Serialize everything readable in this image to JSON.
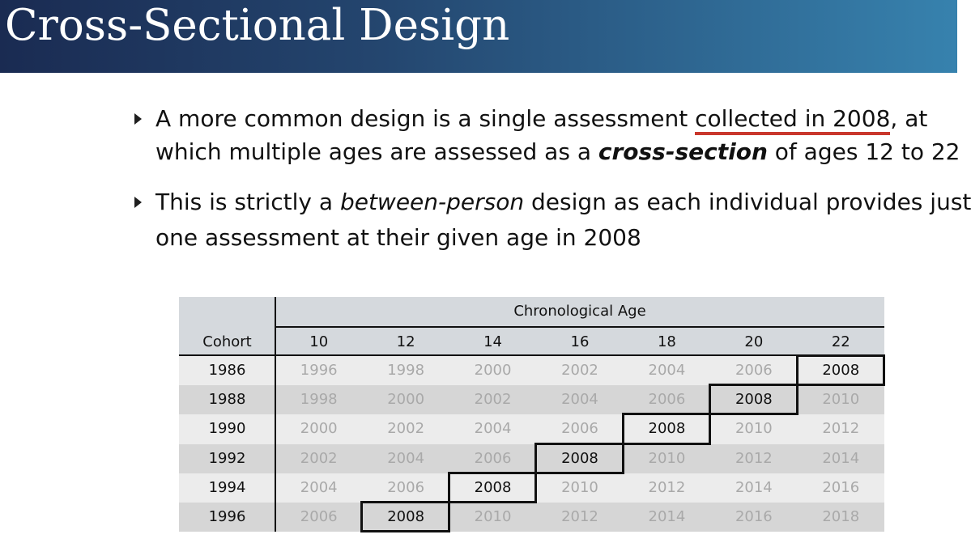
{
  "slide": {
    "title": "Cross-Sectional Design"
  },
  "bullets": [
    {
      "line1_pre": "A more common design is a single assessment ",
      "line1_underlined": "collected in 2008",
      "line1_post": ", at",
      "line2_pre": "which multiple ages are assessed as a ",
      "line2_emph": "cross-section",
      "line2_post": " of ages 12 to 22"
    },
    {
      "line1_pre": "This is strictly a ",
      "line1_emph": "between-person",
      "line1_post": " design as each individual provides just",
      "line2": "one assessment at their given age in 2008"
    }
  ],
  "table": {
    "super_header": "Chronological Age",
    "cohort_header": "Cohort",
    "ages": [
      "10",
      "12",
      "14",
      "16",
      "18",
      "20",
      "22"
    ],
    "rows": [
      {
        "cohort": "1986",
        "cells": [
          "1996",
          "1998",
          "2000",
          "2002",
          "2004",
          "2006",
          "2008"
        ],
        "highlight_col": 6
      },
      {
        "cohort": "1988",
        "cells": [
          "1998",
          "2000",
          "2002",
          "2004",
          "2006",
          "2008",
          "2010"
        ],
        "highlight_col": 5
      },
      {
        "cohort": "1990",
        "cells": [
          "2000",
          "2002",
          "2004",
          "2006",
          "2008",
          "2010",
          "2012"
        ],
        "highlight_col": 4
      },
      {
        "cohort": "1992",
        "cells": [
          "2002",
          "2004",
          "2006",
          "2008",
          "2010",
          "2012",
          "2014"
        ],
        "highlight_col": 3
      },
      {
        "cohort": "1994",
        "cells": [
          "2004",
          "2006",
          "2008",
          "2010",
          "2012",
          "2014",
          "2016"
        ],
        "highlight_col": 2
      },
      {
        "cohort": "1996",
        "cells": [
          "2006",
          "2008",
          "2010",
          "2012",
          "2014",
          "2016",
          "2018"
        ],
        "highlight_col": 1
      }
    ]
  },
  "colors": {
    "title_gradient_start": "#1a2b52",
    "title_gradient_end": "#3782ae",
    "underline": "#c9372c",
    "header_bg": "#d5d9dd",
    "row_light": "#ececec",
    "row_dark": "#d6d6d6",
    "faded_text": "#a9a9a9"
  }
}
